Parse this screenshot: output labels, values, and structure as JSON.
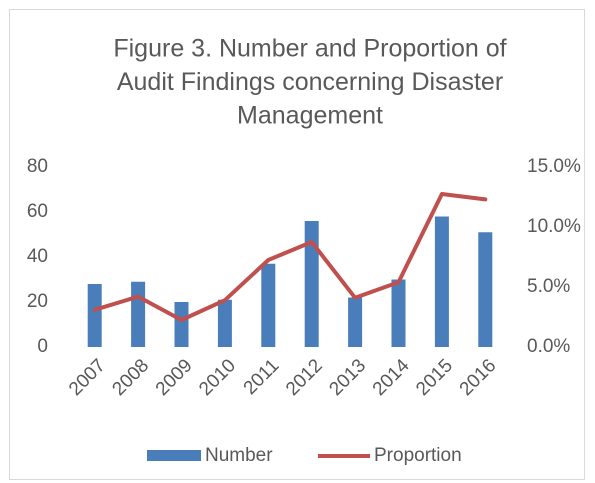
{
  "chart_data": {
    "type": "bar_line",
    "title": [
      "Figure 3. Number and Proportion of",
      "Audit Findings concerning Disaster",
      "Management"
    ],
    "categories": [
      "2007",
      "2008",
      "2009",
      "2010",
      "2011",
      "2012",
      "2013",
      "2014",
      "2015",
      "2016"
    ],
    "series": [
      {
        "name": "Number",
        "color": "#4a7ebb",
        "type": "bar",
        "values": [
          28,
          29,
          20,
          21,
          37,
          56,
          22,
          30,
          58,
          51
        ]
      },
      {
        "name": "Proportion",
        "color": "#c0504d",
        "type": "line",
        "axis": "y2",
        "values": [
          3.1,
          4.2,
          2.25,
          3.9,
          7.25,
          8.75,
          4.1,
          5.4,
          12.75,
          12.3
        ]
      }
    ],
    "ylim": [
      0,
      80
    ],
    "yticks": [
      0,
      20,
      40,
      60,
      80
    ],
    "y2lim": [
      0,
      15
    ],
    "y2ticks": [
      {
        "value": 0,
        "label": "0.0%"
      },
      {
        "value": 5,
        "label": "5.0%"
      },
      {
        "value": 10,
        "label": "10.0%"
      },
      {
        "value": 15,
        "label": "15.0%"
      }
    ],
    "legend": "bottom"
  }
}
